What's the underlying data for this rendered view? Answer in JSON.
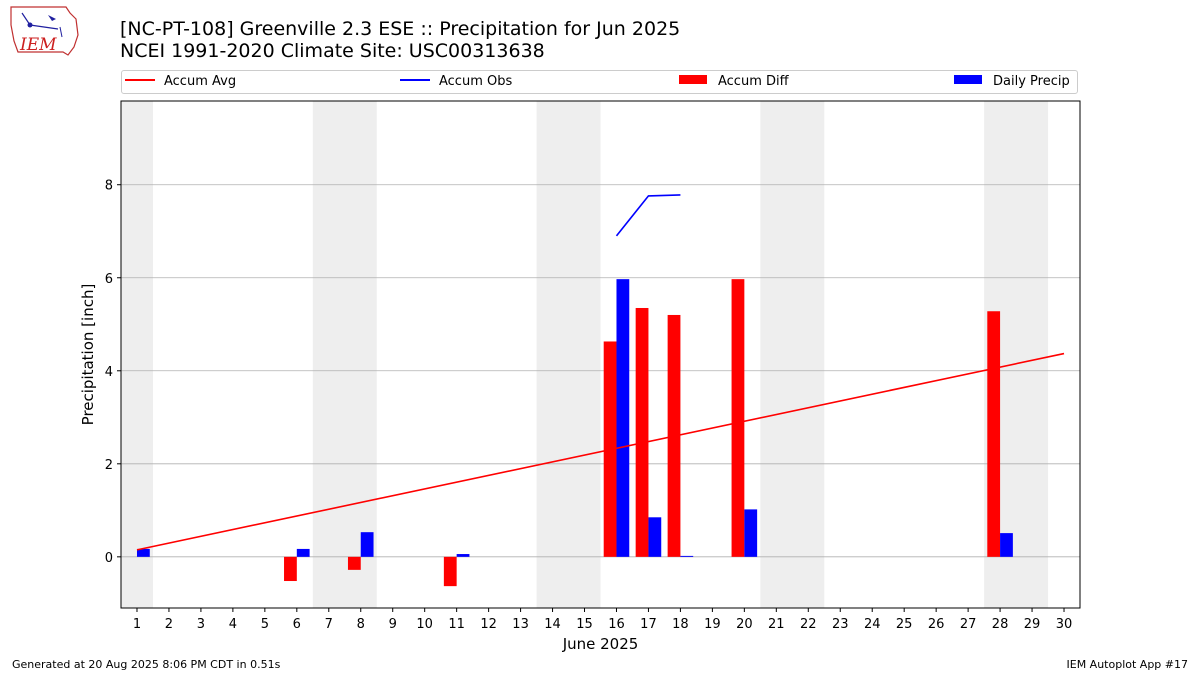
{
  "header": {
    "logo_text": "IEM",
    "title_line1": "[NC-PT-108] Greenville 2.3 ESE :: Precipitation for Jun 2025",
    "title_line2": "NCEI 1991-2020 Climate Site: USC00313638"
  },
  "legend": {
    "accum_avg": "Accum Avg",
    "accum_obs": "Accum Obs",
    "accum_diff": "Accum Diff",
    "daily_precip": "Daily Precip",
    "placement": "top (above plot)"
  },
  "footer": {
    "generated": "Generated at 20 Aug 2025 8:06 PM CDT in 0.51s",
    "app": "IEM Autoplot App #17"
  },
  "colors": {
    "accum_avg": "#ff0000",
    "accum_obs": "#0000ff",
    "accum_diff": "#ff0000",
    "daily_precip": "#0000ff",
    "weekend_shade": "#eeeeee",
    "grid": "#b0b0b0"
  },
  "chart_data": {
    "type": "bar",
    "title": "[NC-PT-108] Greenville 2.3 ESE :: Precipitation for Jun 2025",
    "xlabel": "June 2025",
    "ylabel": "Precipitation [inch]",
    "xlim": [
      0.5,
      30.5
    ],
    "ylim": [
      -1.1,
      9.8
    ],
    "grid": "horizontal",
    "x_ticks": [
      "1",
      "2",
      "3",
      "4",
      "5",
      "6",
      "7",
      "8",
      "9",
      "10",
      "11",
      "12",
      "13",
      "14",
      "15",
      "16",
      "17",
      "18",
      "19",
      "20",
      "21",
      "22",
      "23",
      "24",
      "25",
      "26",
      "27",
      "28",
      "29",
      "30"
    ],
    "y_ticks": [
      0,
      2,
      4,
      6,
      8
    ],
    "weekend_spans": [
      [
        0.5,
        1.5
      ],
      [
        6.5,
        8.5
      ],
      [
        13.5,
        15.5
      ],
      [
        20.5,
        22.5
      ],
      [
        27.5,
        29.5
      ]
    ],
    "series": [
      {
        "name": "Accum Avg",
        "kind": "line",
        "x": [
          1,
          30
        ],
        "values": [
          0.15,
          4.37
        ]
      },
      {
        "name": "Accum Obs",
        "kind": "line",
        "x": [
          16,
          17,
          18
        ],
        "values": [
          6.9,
          7.76,
          7.78
        ]
      },
      {
        "name": "Accum Diff",
        "kind": "bar",
        "x": [
          6,
          8,
          11,
          16,
          17,
          18,
          20,
          28
        ],
        "values": [
          -0.52,
          -0.28,
          -0.63,
          4.63,
          5.35,
          5.2,
          5.97,
          5.28
        ]
      },
      {
        "name": "Daily Precip",
        "kind": "bar",
        "x": [
          1,
          6,
          8,
          11,
          16,
          17,
          18,
          20,
          28
        ],
        "values": [
          0.17,
          0.17,
          0.53,
          0.06,
          5.97,
          0.85,
          0.02,
          1.02,
          0.51
        ]
      }
    ]
  }
}
